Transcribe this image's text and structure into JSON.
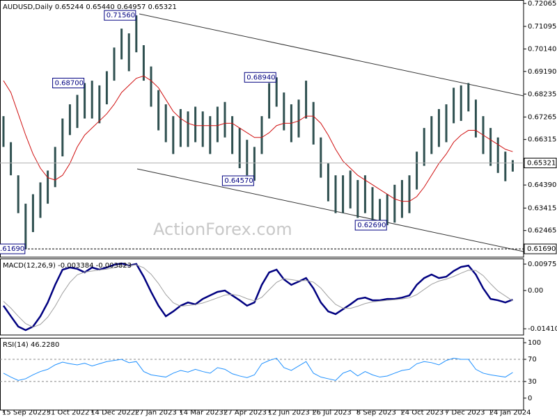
{
  "chart_data": [
    {
      "type": "range-bar",
      "header": "AUDUSD,Daily  0.65244 0.65440 0.64957 0.65321",
      "watermark": "ActionForex.com",
      "color": "#2f5050",
      "categories": [
        "15 Sep 2022",
        null,
        null,
        null,
        null,
        null,
        "31 Oct 2022",
        null,
        null,
        null,
        null,
        null,
        "14 Dec 2022",
        null,
        null,
        null,
        null,
        null,
        "27 Jan 2023",
        null,
        null,
        null,
        null,
        null,
        "14 Mar 2023",
        null,
        null,
        null,
        null,
        null,
        "27 Apr 2023",
        null,
        null,
        null,
        null,
        null,
        "12 Jun 2023",
        null,
        null,
        null,
        null,
        null,
        "26 Jul 2023",
        null,
        null,
        null,
        null,
        null,
        "8 Sep 2023",
        null,
        null,
        null,
        null,
        null,
        "24 Oct 2023",
        null,
        null,
        null,
        null,
        null,
        "7 Dec 2023",
        null,
        null,
        null,
        null,
        null,
        "24 Jan 2024",
        null,
        null,
        null
      ],
      "high": [
        0.673,
        0.662,
        0.648,
        0.636,
        0.64,
        0.645,
        0.65,
        0.66,
        0.672,
        0.678,
        0.682,
        0.687,
        0.688,
        0.686,
        0.692,
        0.702,
        0.71,
        0.708,
        0.7156,
        0.703,
        0.694,
        0.684,
        0.678,
        0.673,
        0.676,
        0.675,
        0.677,
        0.675,
        0.673,
        0.677,
        0.679,
        0.673,
        0.668,
        0.663,
        0.66,
        0.673,
        0.687,
        0.6894,
        0.683,
        0.678,
        0.68,
        0.688,
        0.679,
        0.664,
        0.653,
        0.648,
        0.648,
        0.65,
        0.646,
        0.648,
        0.643,
        0.638,
        0.64,
        0.644,
        0.646,
        0.648,
        0.658,
        0.668,
        0.673,
        0.676,
        0.678,
        0.685,
        0.686,
        0.687,
        0.68,
        0.673,
        0.668,
        0.664,
        0.658,
        0.6544
      ],
      "low": [
        0.66,
        0.648,
        0.632,
        0.6169,
        0.624,
        0.63,
        0.636,
        0.643,
        0.656,
        0.665,
        0.668,
        0.672,
        0.672,
        0.67,
        0.678,
        0.688,
        0.697,
        0.692,
        0.7,
        0.688,
        0.677,
        0.667,
        0.662,
        0.657,
        0.66,
        0.66,
        0.662,
        0.66,
        0.657,
        0.662,
        0.664,
        0.657,
        0.651,
        0.648,
        0.6457,
        0.657,
        0.672,
        0.677,
        0.667,
        0.662,
        0.664,
        0.672,
        0.661,
        0.647,
        0.637,
        0.632,
        0.632,
        0.634,
        0.63,
        0.632,
        0.628,
        0.6275,
        0.6269,
        0.628,
        0.63,
        0.632,
        0.642,
        0.652,
        0.657,
        0.66,
        0.662,
        0.67,
        0.671,
        0.675,
        0.664,
        0.657,
        0.652,
        0.649,
        0.6455,
        0.64957
      ],
      "ma": {
        "color": "#d01010",
        "values": [
          0.688,
          0.683,
          0.674,
          0.665,
          0.657,
          0.651,
          0.647,
          0.646,
          0.648,
          0.653,
          0.66,
          0.665,
          0.668,
          0.671,
          0.674,
          0.678,
          0.683,
          0.686,
          0.689,
          0.69,
          0.688,
          0.685,
          0.68,
          0.675,
          0.672,
          0.67,
          0.669,
          0.669,
          0.669,
          0.669,
          0.67,
          0.67,
          0.668,
          0.666,
          0.664,
          0.664,
          0.666,
          0.669,
          0.67,
          0.67,
          0.671,
          0.673,
          0.673,
          0.67,
          0.665,
          0.659,
          0.654,
          0.651,
          0.648,
          0.646,
          0.644,
          0.642,
          0.64,
          0.638,
          0.637,
          0.637,
          0.639,
          0.643,
          0.648,
          0.653,
          0.657,
          0.662,
          0.665,
          0.667,
          0.667,
          0.665,
          0.663,
          0.661,
          0.659,
          0.658
        ]
      },
      "ylim": [
        0.6134,
        0.7221
      ],
      "yticks": [
        0.72065,
        0.71095,
        {
          "value": 0.7014,
          "label": "0.70140"
        },
        {
          "value": 0.6919,
          "label": "0.69190"
        },
        0.68235,
        0.67265,
        0.66315,
        {
          "value": 0.6439,
          "label": "0.64390"
        },
        0.63415,
        0.62465
      ],
      "last_price": {
        "value": 0.65321,
        "label": "0.65321"
      },
      "support": {
        "value": 0.6169,
        "label": "0.61690"
      },
      "annotations": [
        {
          "value": 0.7156,
          "label": "0.71560"
        },
        {
          "value": 0.6894,
          "label": "0.68940"
        },
        {
          "value": 0.6457,
          "label": "0.64570"
        },
        {
          "value": 0.687,
          "label": "0.68700"
        },
        {
          "value": 0.6269,
          "label": "0.62690"
        },
        {
          "value": 0.6169,
          "label": "0.61690"
        }
      ]
    },
    {
      "type": "line",
      "header": "MACD(12,26,9) -0.003384 -0.003823",
      "series": [
        {
          "color": "#000080",
          "width": 2.5,
          "values": [
            -0.0056,
            -0.0095,
            -0.0133,
            -0.0146,
            -0.0133,
            -0.0095,
            -0.0044,
            0.0021,
            0.0077,
            0.0085,
            0.008,
            0.0067,
            0.0085,
            0.0077,
            0.0085,
            0.0095,
            0.01,
            0.0092,
            0.0098,
            0.0051,
            -0.0005,
            -0.0056,
            -0.0095,
            -0.0077,
            -0.0056,
            -0.0044,
            -0.0051,
            -0.0031,
            -0.0018,
            -0.0005,
            0.0,
            -0.0018,
            -0.0036,
            -0.0056,
            -0.0044,
            0.0021,
            0.0067,
            0.0077,
            0.0041,
            0.0021,
            0.0033,
            0.0046,
            0.0008,
            -0.0044,
            -0.0077,
            -0.0087,
            -0.0069,
            -0.0051,
            -0.0031,
            -0.0026,
            -0.0036,
            -0.0036,
            -0.0031,
            -0.0031,
            -0.0026,
            -0.0018,
            0.0021,
            0.0046,
            0.0059,
            0.0046,
            0.0051,
            0.0072,
            0.0087,
            0.0092,
            0.0059,
            0.0008,
            -0.0031,
            -0.0036,
            -0.0044,
            -0.003384
          ]
        },
        {
          "color": "#a0a0a0",
          "width": 1,
          "values": [
            -0.004,
            -0.0065,
            -0.0095,
            -0.0122,
            -0.0135,
            -0.0125,
            -0.0098,
            -0.0058,
            -0.001,
            0.003,
            0.0058,
            0.0068,
            0.0072,
            0.0076,
            0.0079,
            0.0084,
            0.009,
            0.0093,
            0.0095,
            0.0084,
            0.006,
            0.0026,
            -0.0015,
            -0.0045,
            -0.0058,
            -0.0055,
            -0.0052,
            -0.0046,
            -0.0037,
            -0.0027,
            -0.0017,
            -0.0014,
            -0.0019,
            -0.003,
            -0.0038,
            -0.0025,
            0.0003,
            0.003,
            0.0044,
            0.004,
            0.0036,
            0.0037,
            0.0031,
            0.0009,
            -0.0023,
            -0.0051,
            -0.0065,
            -0.0066,
            -0.0058,
            -0.0048,
            -0.0042,
            -0.0039,
            -0.0036,
            -0.0034,
            -0.0031,
            -0.0027,
            -0.0015,
            0.0004,
            0.0023,
            0.0035,
            0.0042,
            0.0052,
            0.0064,
            0.0075,
            0.0074,
            0.0055,
            0.0025,
            -0.0002,
            -0.002,
            -0.003823
          ]
        }
      ],
      "ylim": [
        -0.0164,
        0.0118
      ],
      "yticks": [
        0.009751,
        {
          "value": 0,
          "label": "0.00"
        },
        -0.014107
      ]
    },
    {
      "type": "line",
      "header": "RSI(14) 46.2280",
      "series": [
        {
          "color": "#1e90ff",
          "width": 1,
          "values": [
            45,
            38,
            32,
            35,
            42,
            48,
            52,
            60,
            65,
            62,
            60,
            63,
            58,
            62,
            66,
            68,
            70,
            64,
            66,
            48,
            42,
            40,
            38,
            45,
            50,
            47,
            52,
            48,
            45,
            55,
            52,
            44,
            40,
            37,
            42,
            62,
            68,
            72,
            55,
            50,
            58,
            66,
            45,
            38,
            35,
            32,
            45,
            50,
            40,
            48,
            42,
            38,
            40,
            45,
            50,
            52,
            62,
            66,
            64,
            60,
            68,
            72,
            70,
            70,
            52,
            45,
            42,
            40,
            38,
            46.228
          ]
        }
      ],
      "ylim": [
        -21.5,
        108.9
      ],
      "yticks": [
        100,
        70,
        30,
        0
      ],
      "levels": [
        70,
        30
      ]
    }
  ]
}
